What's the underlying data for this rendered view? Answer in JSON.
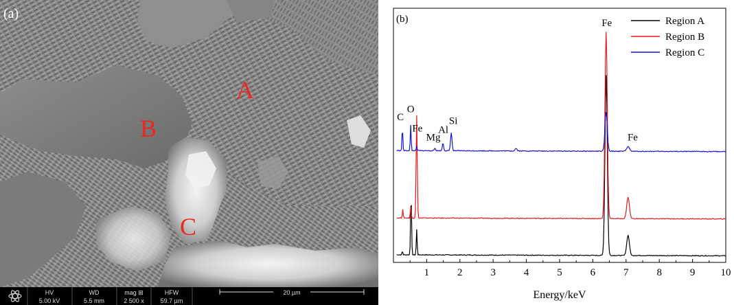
{
  "figure": {
    "panel_a": {
      "label": "(a)",
      "region_labels": [
        "A",
        "B",
        "C"
      ],
      "label_color": "#e8281e",
      "info_bar": {
        "headers": [
          "HV",
          "WD",
          "mag ⊞",
          "HFW"
        ],
        "values": [
          "5.00 kV",
          "5.5 mm",
          "2 500 x",
          "59.7 µm"
        ],
        "scale_label": "20 µm"
      }
    }
  },
  "chart_data": {
    "type": "line",
    "panel_label": "(b)",
    "xlabel": "Energy/keV",
    "ylabel": "",
    "xlim": [
      0,
      10
    ],
    "ylim": [
      0,
      1
    ],
    "xticks": [
      1,
      2,
      3,
      4,
      5,
      6,
      7,
      8,
      9,
      10
    ],
    "grid": false,
    "legend_position": "top-right",
    "series": [
      {
        "name": "Region A",
        "color": "#000000",
        "baseline": 0.03,
        "noise": 0.003,
        "slope": 0.004,
        "peaks": [
          [
            0.27,
            0.015,
            0.012
          ],
          [
            0.53,
            0.24,
            0.015
          ],
          [
            0.7,
            0.1,
            0.013
          ],
          [
            6.4,
            0.71,
            0.035
          ],
          [
            7.06,
            0.08,
            0.04
          ]
        ]
      },
      {
        "name": "Region B",
        "color": "#e8191c",
        "baseline": 0.175,
        "noise": 0.003,
        "slope": 0.004,
        "peaks": [
          [
            0.28,
            0.035,
            0.012
          ],
          [
            0.52,
            0.045,
            0.013
          ],
          [
            0.7,
            0.405,
            0.017
          ],
          [
            6.4,
            0.735,
            0.035
          ],
          [
            7.06,
            0.085,
            0.04
          ]
        ]
      },
      {
        "name": "Region C",
        "color": "#1414d2",
        "baseline": 0.44,
        "noise": 0.003,
        "slope": 0.004,
        "peaks": [
          [
            0.27,
            0.09,
            0.013
          ],
          [
            0.52,
            0.1,
            0.013
          ],
          [
            0.7,
            0.018,
            0.012
          ],
          [
            1.25,
            0.01,
            0.02
          ],
          [
            1.49,
            0.03,
            0.02
          ],
          [
            1.74,
            0.072,
            0.022
          ],
          [
            3.69,
            0.01,
            0.03
          ],
          [
            6.4,
            0.155,
            0.035
          ],
          [
            7.06,
            0.02,
            0.04
          ]
        ]
      }
    ],
    "annotations": [
      {
        "text": "C",
        "x": 0.21,
        "y": 0.56
      },
      {
        "text": "O",
        "x": 0.52,
        "y": 0.59
      },
      {
        "text": "Fe",
        "x": 0.72,
        "y": 0.515
      },
      {
        "text": "Mg",
        "x": 1.2,
        "y": 0.48
      },
      {
        "text": "Al",
        "x": 1.5,
        "y": 0.51
      },
      {
        "text": "Si",
        "x": 1.8,
        "y": 0.545
      },
      {
        "text": "Fe",
        "x": 6.42,
        "y": 0.93
      },
      {
        "text": "Fe",
        "x": 7.2,
        "y": 0.48
      }
    ]
  }
}
